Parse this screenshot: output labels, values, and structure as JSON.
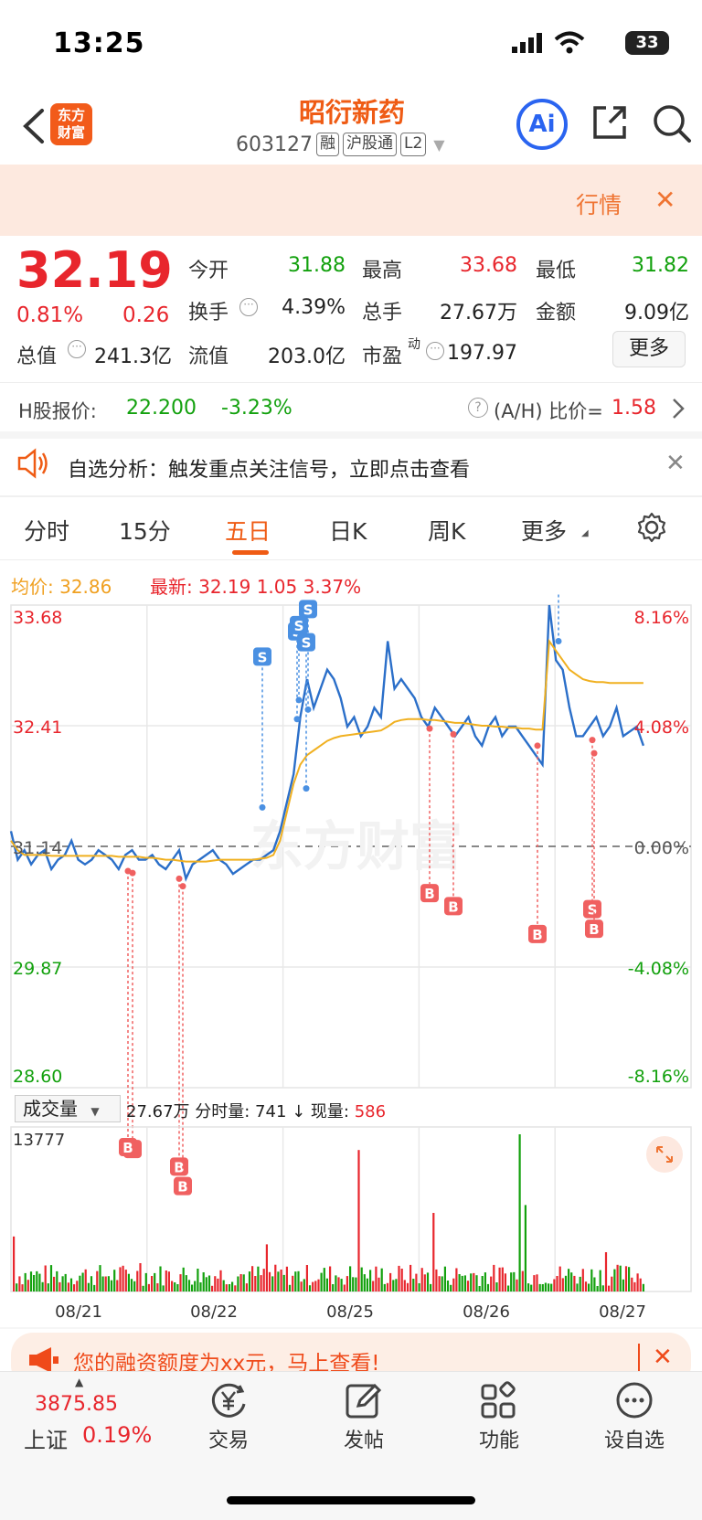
{
  "status_bar": {
    "time": "13:25",
    "battery": "33"
  },
  "header": {
    "logo_line1": "东方",
    "logo_line2": "财富",
    "stock_name": "昭衍新药",
    "stock_code": "603127",
    "tags": [
      "融",
      "沪股通",
      "L2"
    ],
    "ai_label": "Ai"
  },
  "quote_banner": {
    "label": "行情",
    "close": "✕"
  },
  "price": {
    "last": "32.19",
    "pct": "0.81%",
    "change": "0.26",
    "stats": [
      {
        "label": "今开",
        "value": "31.88",
        "color": "#13a10e"
      },
      {
        "label": "最高",
        "value": "33.68",
        "color": "#e8262d"
      },
      {
        "label": "最低",
        "value": "31.82",
        "color": "#13a10e"
      },
      {
        "label": "换手",
        "value": "4.39%",
        "color": "#222222"
      },
      {
        "label": "总手",
        "value": "27.67万",
        "color": "#222222"
      },
      {
        "label": "金额",
        "value": "9.09亿",
        "color": "#222222"
      },
      {
        "label": "总值",
        "value": "241.3亿",
        "color": "#222222"
      },
      {
        "label": "流值",
        "value": "203.0亿",
        "color": "#222222"
      },
      {
        "label": "市盈",
        "sup": "动",
        "value": "197.97",
        "color": "#222222"
      }
    ],
    "more_label": "更多"
  },
  "h_share": {
    "label": "H股报价:",
    "price": "22.200",
    "pct": "-3.23%",
    "ah_label": "(A/H) 比价=",
    "ah_value": "1.58"
  },
  "alert": {
    "text": "自选分析：触发重点关注信号，立即点击查看",
    "close": "✕"
  },
  "tabs": [
    {
      "label": "分时",
      "active": false
    },
    {
      "label": "15分",
      "active": false
    },
    {
      "label": "五日",
      "active": true
    },
    {
      "label": "日K",
      "active": false
    },
    {
      "label": "周K",
      "active": false
    },
    {
      "label": "更多",
      "active": false
    }
  ],
  "chart_header": {
    "avg_label": "均价: 32.86",
    "latest_label": "最新: 32.19  1.05  3.37%"
  },
  "chart_data": {
    "type": "line",
    "title": "",
    "x_ticks": [
      "08/21",
      "08/22",
      "08/25",
      "08/26",
      "08/27"
    ],
    "y_left_ticks": [
      "33.68",
      "32.41",
      "31.14",
      "29.87",
      "28.60"
    ],
    "y_right_ticks": [
      "8.16%",
      "4.08%",
      "0.00%",
      "-4.08%",
      "-8.16%"
    ],
    "ylim": [
      28.6,
      33.68
    ],
    "prev_close": 31.14,
    "series": [
      {
        "color": "#2b6fc9",
        "values": [
          31.3,
          31.0,
          31.1,
          30.95,
          31.05,
          31.1,
          30.9,
          31.0,
          31.05,
          31.2,
          31.0,
          30.95,
          31.0,
          31.1,
          31.05,
          31.0,
          30.9,
          31.05,
          31.1,
          31.0,
          31.0,
          31.05,
          30.95,
          30.9,
          31.0,
          31.1,
          30.8,
          30.95,
          31.0,
          31.05,
          31.1,
          31.0,
          30.95,
          30.85,
          30.9,
          30.95,
          31.0,
          31.0,
          31.05,
          31.1,
          31.3,
          31.6,
          31.9,
          32.5,
          32.9,
          32.6,
          32.8,
          33.0,
          32.9,
          32.7,
          32.4,
          32.5,
          32.3,
          32.4,
          32.6,
          32.5,
          33.3,
          32.8,
          32.9,
          32.8,
          32.7,
          32.5,
          32.4,
          32.6,
          32.5,
          32.4,
          32.3,
          32.4,
          32.5,
          32.3,
          32.2,
          32.4,
          32.5,
          32.3,
          32.4,
          32.4,
          32.3,
          32.2,
          32.1,
          32.0,
          33.68,
          33.1,
          33.0,
          32.6,
          32.3,
          32.3,
          32.4,
          32.5,
          32.3,
          32.4,
          32.6,
          32.3,
          32.35,
          32.4,
          32.2
        ]
      },
      {
        "color": "#f0b020",
        "values": [
          31.2,
          31.1,
          31.05,
          31.05,
          31.05,
          31.05,
          31.04,
          31.04,
          31.04,
          31.04,
          31.04,
          31.04,
          31.04,
          31.04,
          31.04,
          31.04,
          31.03,
          31.03,
          31.03,
          31.03,
          31.02,
          31.02,
          31.01,
          31.0,
          31.0,
          30.99,
          30.98,
          30.98,
          30.98,
          30.98,
          30.99,
          31.0,
          31.0,
          31.0,
          31.0,
          31.0,
          31.0,
          31.01,
          31.02,
          31.05,
          31.2,
          31.5,
          31.8,
          32.0,
          32.1,
          32.15,
          32.2,
          32.25,
          32.28,
          32.3,
          32.31,
          32.32,
          32.33,
          32.34,
          32.35,
          32.36,
          32.4,
          32.45,
          32.47,
          32.48,
          32.48,
          32.48,
          32.47,
          32.47,
          32.46,
          32.45,
          32.44,
          32.44,
          32.43,
          32.42,
          32.41,
          32.41,
          32.4,
          32.4,
          32.39,
          32.39,
          32.38,
          32.38,
          32.37,
          32.37,
          33.3,
          33.2,
          33.1,
          33.0,
          32.95,
          32.9,
          32.88,
          32.87,
          32.87,
          32.86,
          32.86,
          32.86,
          32.86,
          32.86,
          32.86
        ]
      }
    ],
    "annotations": [
      "B",
      "B",
      "B",
      "S",
      "S",
      "S",
      "S",
      "S",
      "B",
      "B",
      "B",
      "B",
      "S",
      "B",
      "B"
    ],
    "grid": true
  },
  "volume": {
    "dropdown_label": "成交量",
    "info": "27.67万 分时量: 741 ↓ 现量: ",
    "current": "586",
    "max_label": "13777"
  },
  "watermark": "东方财富",
  "promo": {
    "text": "您的融资额度为xx元，马上查看!",
    "close": "✕"
  },
  "bottom_nav": {
    "index_value": "3875.85",
    "index_name": "上证",
    "index_pct": "0.19%",
    "items": [
      {
        "label": "交易",
        "icon": "yen-icon"
      },
      {
        "label": "发帖",
        "icon": "edit-icon"
      },
      {
        "label": "功能",
        "icon": "grid-icon"
      },
      {
        "label": "设自选",
        "icon": "more-icon"
      }
    ]
  }
}
